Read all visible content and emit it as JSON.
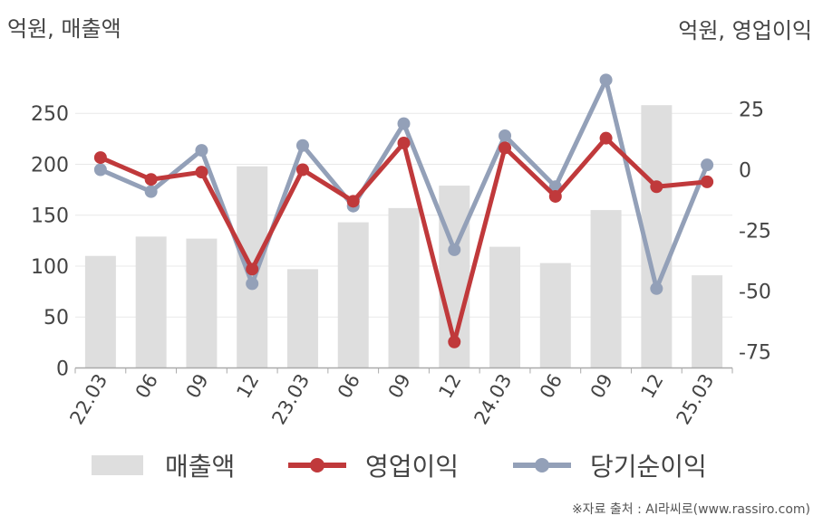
{
  "titles": {
    "left_axis": "억원, 매출액",
    "right_axis": "억원, 영업이익"
  },
  "source": "※자료 출처 : AI라씨로(www.rassiro.com)",
  "colors": {
    "bar": "#dedede",
    "operating_profit": "#c0393b",
    "net_income": "#93a0b8",
    "axis": "#aaaaaa",
    "grid": "#e8e8e8"
  },
  "chart_data": {
    "type": "bar+line",
    "categories": [
      "22.03",
      "06",
      "09",
      "12",
      "23.03",
      "06",
      "09",
      "12",
      "24.03",
      "06",
      "09",
      "12",
      "25.03"
    ],
    "left_axis": {
      "ylim": [
        0,
        280
      ],
      "ticks": [
        0,
        50,
        100,
        150,
        200,
        250
      ]
    },
    "right_axis": {
      "ylim": [
        -82,
        44
      ],
      "ticks": [
        -75,
        -50,
        -25,
        0,
        25
      ]
    },
    "series": [
      {
        "name": "매출액",
        "kind": "bar",
        "axis": "left",
        "values": [
          110,
          129,
          127,
          198,
          97,
          143,
          157,
          179,
          119,
          103,
          155,
          258,
          91
        ]
      },
      {
        "name": "영업이익",
        "kind": "line",
        "axis": "right",
        "values": [
          5,
          -4,
          -1,
          -41,
          0,
          -13,
          11,
          -71,
          9,
          -11,
          13,
          -7,
          -5
        ]
      },
      {
        "name": "당기순이익",
        "kind": "line",
        "axis": "right",
        "values": [
          0,
          -9,
          8,
          -47,
          10,
          -15,
          19,
          -33,
          14,
          -7,
          37,
          -49,
          2
        ]
      }
    ],
    "legend_position": "bottom"
  }
}
